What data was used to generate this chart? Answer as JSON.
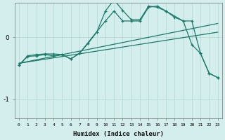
{
  "bg_color": "#d4eeed",
  "grid_color": "#b8dbd8",
  "line_color": "#1a7a6a",
  "x_label": "Humidex (Indice chaleur)",
  "x_ticks": [
    0,
    1,
    2,
    3,
    4,
    5,
    6,
    7,
    8,
    9,
    10,
    11,
    12,
    13,
    14,
    15,
    16,
    17,
    18,
    19,
    20,
    21,
    22,
    23
  ],
  "ylim": [
    -1.3,
    0.55
  ],
  "yticks": [
    -1,
    0
  ],
  "curve1_x": [
    0,
    1,
    2,
    3,
    4,
    5,
    6,
    7,
    8,
    9,
    10,
    11,
    12,
    13,
    14,
    15,
    16,
    17,
    18,
    19,
    20,
    21,
    22,
    23
  ],
  "curve1_y": [
    -0.45,
    -0.3,
    -0.28,
    -0.27,
    -0.27,
    -0.28,
    -0.35,
    -0.26,
    -0.1,
    0.08,
    0.42,
    0.6,
    0.43,
    0.28,
    0.28,
    0.5,
    0.48,
    0.42,
    0.32,
    0.26,
    -0.12,
    -0.26,
    -0.58,
    -0.65
  ],
  "curve2_x": [
    0,
    1,
    2,
    3,
    4,
    5,
    6,
    7,
    10,
    11,
    12,
    13,
    14,
    15,
    16,
    17,
    19,
    20,
    21,
    22,
    23
  ],
  "curve2_y": [
    -0.45,
    -0.31,
    -0.3,
    -0.28,
    -0.3,
    -0.28,
    -0.35,
    -0.26,
    0.26,
    0.42,
    0.26,
    0.26,
    0.26,
    0.48,
    0.5,
    0.42,
    0.26,
    0.26,
    -0.26,
    -0.58,
    -0.65
  ],
  "line1_x": [
    0,
    23
  ],
  "line1_y": [
    -0.42,
    0.22
  ],
  "line2_x": [
    0,
    23
  ],
  "line2_y": [
    -0.42,
    0.08
  ],
  "figsize": [
    3.2,
    2.0
  ],
  "dpi": 100
}
